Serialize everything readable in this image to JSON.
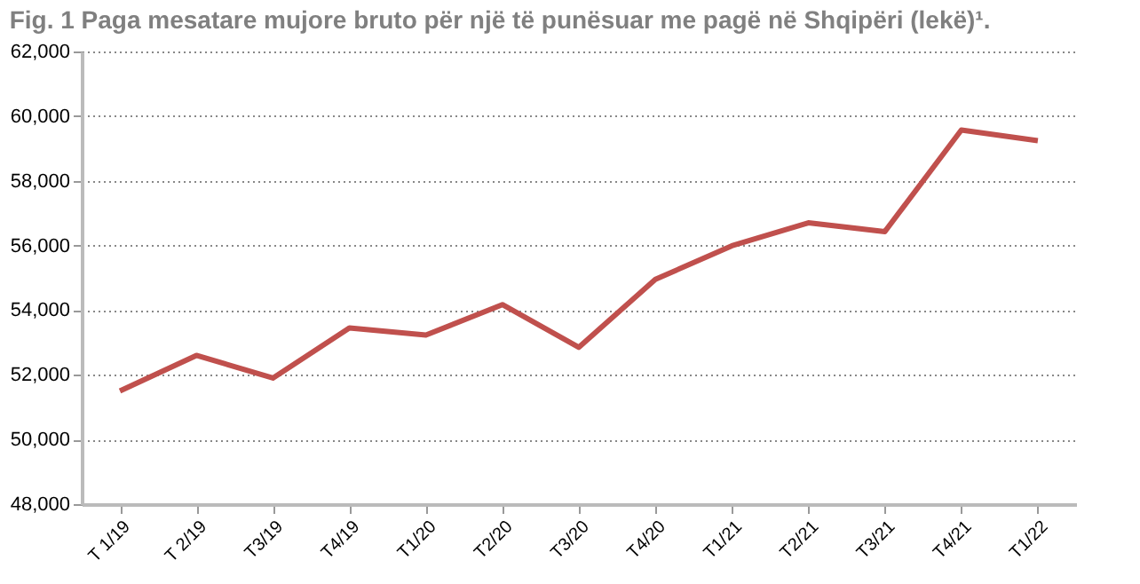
{
  "chart_data": {
    "type": "line",
    "title": "Fig. 1 Paga mesatare mujore bruto për një të punësuar me pagë në  Shqipëri (lekë)¹.",
    "categories": [
      "T 1/19",
      "T 2/19",
      "T3/19",
      "T4/19",
      "T1/20",
      "T2/20",
      "T3/20",
      "T4/20",
      "T1/21",
      "T2/21",
      "T3/21",
      "T4/21",
      "T1/22"
    ],
    "series": [
      {
        "color": "#c0504d",
        "values": [
          51500,
          52600,
          51900,
          53450,
          53230,
          54170,
          52850,
          54950,
          55990,
          56700,
          56430,
          59570,
          59240
        ]
      }
    ],
    "ylim": [
      48000,
      62000
    ],
    "yticks": [
      {
        "value": 48000,
        "label": "48,000"
      },
      {
        "value": 50000,
        "label": "50,000"
      },
      {
        "value": 52000,
        "label": "52,000"
      },
      {
        "value": 54000,
        "label": "54,000"
      },
      {
        "value": 56000,
        "label": "56,000"
      },
      {
        "value": 58000,
        "label": "58,000"
      },
      {
        "value": 60000,
        "label": "60,000"
      },
      {
        "value": 62000,
        "label": "62,000"
      }
    ],
    "grid": "y",
    "marker": "none",
    "line_style": "solid",
    "legend": false
  }
}
